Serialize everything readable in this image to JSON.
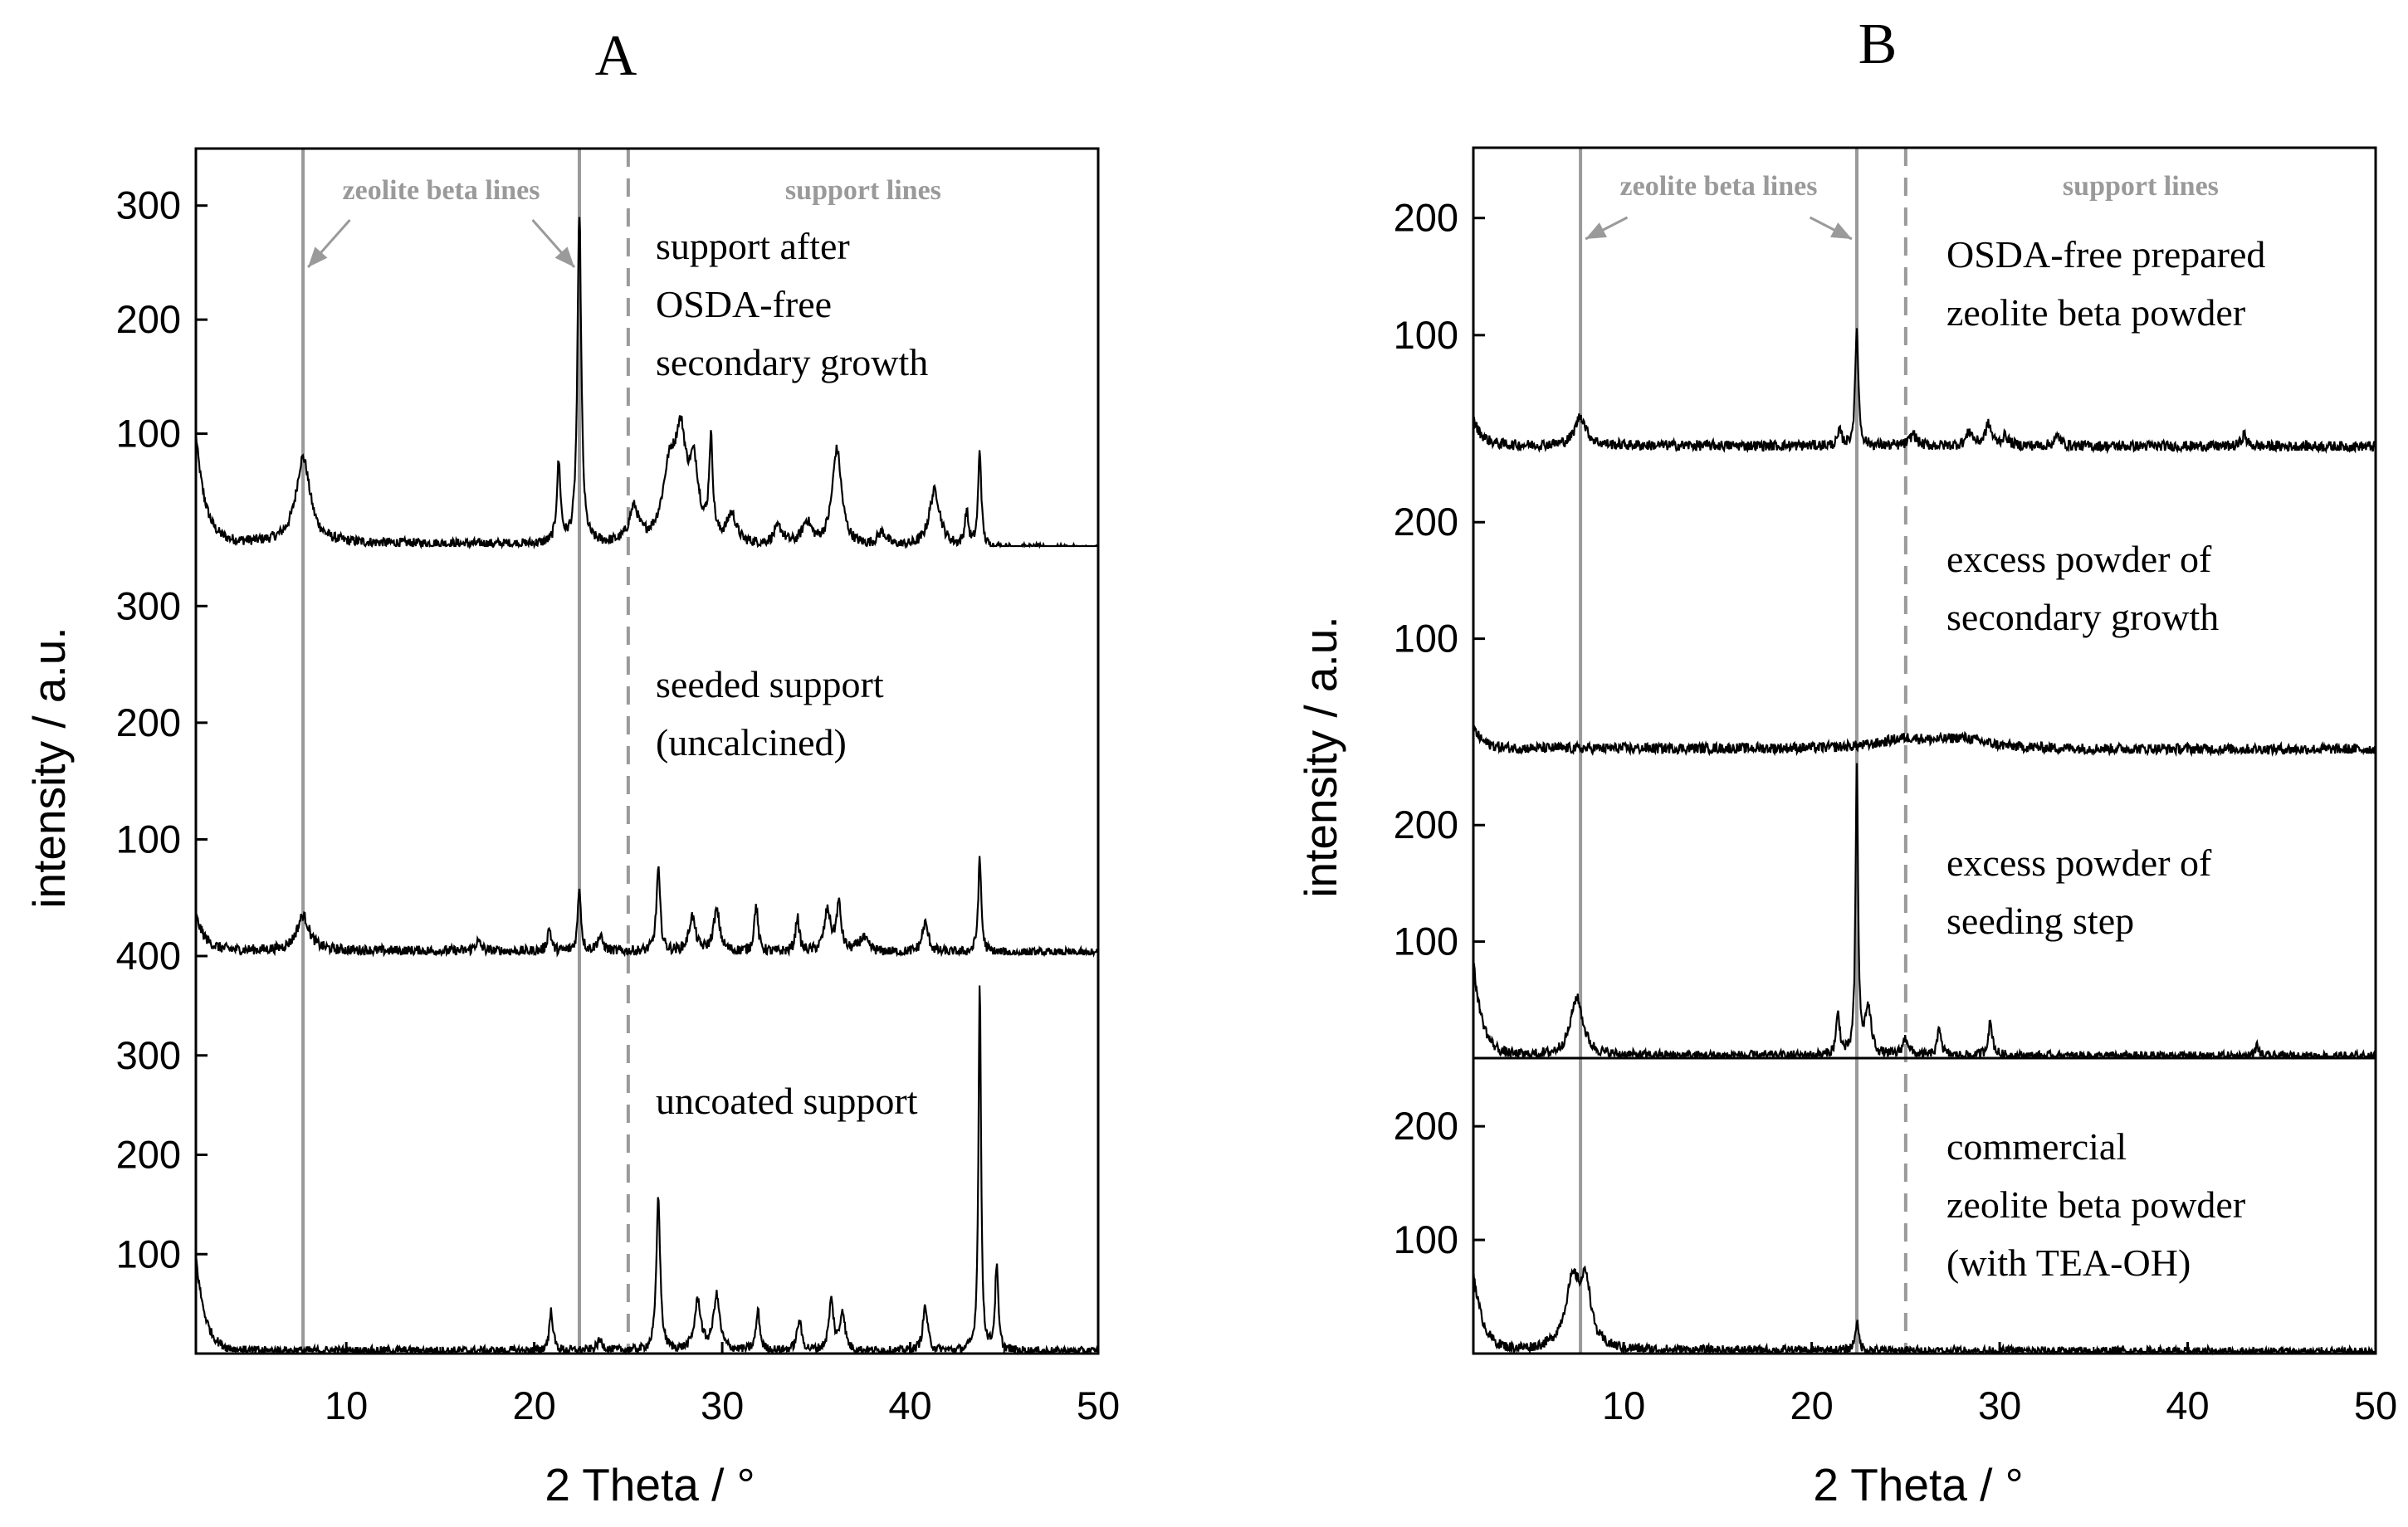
{
  "chart_data": [
    {
      "panel": "A",
      "title": "A",
      "type": "line",
      "xlabel": "2 Theta / °",
      "ylabel": "intensity / a.u.",
      "xlim": [
        2,
        50
      ],
      "xticks": [
        10,
        20,
        30,
        40,
        50
      ],
      "reference_lines": [
        {
          "x": 7.7,
          "style": "solid",
          "group": "zeolite beta lines"
        },
        {
          "x": 22.4,
          "style": "solid",
          "group": "zeolite beta lines"
        },
        {
          "x": 25.0,
          "style": "dashed",
          "group": "support lines"
        }
      ],
      "reference_labels": {
        "zeolite": "zeolite beta lines",
        "support": "support lines"
      },
      "series": [
        {
          "name": "support after OSDA-free secondary growth",
          "label_lines": [
            "support after",
            "OSDA-free",
            "secondary growth"
          ],
          "ylim": [
            0,
            350
          ],
          "yticks": [
            100,
            200,
            300
          ],
          "ytick_labels": [
            "100",
            "200",
            "300"
          ],
          "baseline": 5,
          "baseline_end": -2,
          "left_edge": 95,
          "peaks": [
            [
              7.7,
              75,
              0.45
            ],
            [
              21.3,
              70,
              0.12
            ],
            [
              22.4,
              290,
              0.12
            ],
            [
              25.3,
              30,
              0.3
            ],
            [
              27.2,
              60,
              0.45
            ],
            [
              27.8,
              80,
              0.35
            ],
            [
              28.5,
              60,
              0.3
            ],
            [
              29.4,
              85,
              0.12
            ],
            [
              30.5,
              25,
              0.3
            ],
            [
              33.0,
              15,
              0.3
            ],
            [
              34.5,
              20,
              0.3
            ],
            [
              36.1,
              85,
              0.3
            ],
            [
              38.5,
              12,
              0.3
            ],
            [
              41.3,
              50,
              0.35
            ],
            [
              43.0,
              30,
              0.12
            ],
            [
              43.7,
              85,
              0.1
            ]
          ]
        },
        {
          "name": "seeded support (uncalcined)",
          "label_lines": [
            "seeded support",
            "(uncalcined)"
          ],
          "ylim": [
            0,
            350
          ],
          "yticks": [
            100,
            200,
            300
          ],
          "ytick_labels": [
            "100",
            "200",
            "300"
          ],
          "baseline": 5,
          "baseline_end": 2,
          "left_edge": 30,
          "peaks": [
            [
              7.7,
              30,
              0.4
            ],
            [
              17.0,
              8,
              0.2
            ],
            [
              20.8,
              20,
              0.12
            ],
            [
              22.4,
              55,
              0.1
            ],
            [
              23.5,
              12,
              0.2
            ],
            [
              26.6,
              70,
              0.12
            ],
            [
              28.4,
              30,
              0.2
            ],
            [
              29.7,
              35,
              0.2
            ],
            [
              31.8,
              40,
              0.12
            ],
            [
              34.0,
              30,
              0.12
            ],
            [
              35.6,
              35,
              0.2
            ],
            [
              36.2,
              40,
              0.15
            ],
            [
              37.5,
              12,
              0.3
            ],
            [
              40.8,
              25,
              0.2
            ],
            [
              43.7,
              80,
              0.1
            ]
          ]
        },
        {
          "name": "uncoated support",
          "label_lines": [
            "uncoated support"
          ],
          "ylim": [
            0,
            400
          ],
          "yticks": [
            100,
            200,
            300,
            400
          ],
          "ytick_labels": [
            "100",
            "200",
            "300",
            "400"
          ],
          "baseline": 3,
          "baseline_end": 2,
          "left_edge": 95,
          "peaks": [
            [
              20.9,
              40,
              0.12
            ],
            [
              23.5,
              10,
              0.2
            ],
            [
              26.6,
              155,
              0.12
            ],
            [
              28.7,
              50,
              0.2
            ],
            [
              29.7,
              55,
              0.2
            ],
            [
              31.9,
              40,
              0.12
            ],
            [
              34.1,
              30,
              0.15
            ],
            [
              35.8,
              50,
              0.15
            ],
            [
              36.4,
              40,
              0.15
            ],
            [
              40.8,
              45,
              0.15
            ],
            [
              43.7,
              375,
              0.08
            ],
            [
              44.6,
              85,
              0.1
            ]
          ]
        }
      ]
    },
    {
      "panel": "B",
      "title": "B",
      "type": "line",
      "xlabel": "2 Theta / °",
      "ylabel": "intensity / a.u.",
      "xlim": [
        2,
        50
      ],
      "xticks": [
        10,
        20,
        30,
        40,
        50
      ],
      "reference_lines": [
        {
          "x": 7.7,
          "style": "solid",
          "group": "zeolite beta lines"
        },
        {
          "x": 22.4,
          "style": "solid",
          "group": "zeolite beta lines"
        },
        {
          "x": 25.0,
          "style": "dashed",
          "group": "support lines"
        }
      ],
      "reference_labels": {
        "zeolite": "zeolite beta lines",
        "support": "support lines"
      },
      "series": [
        {
          "name": "OSDA-free prepared zeolite beta powder",
          "label_lines": [
            "OSDA-free prepared",
            "zeolite beta powder"
          ],
          "ylim": [
            0,
            260
          ],
          "yticks": [
            100,
            200
          ],
          "ytick_labels": [
            "100",
            "200"
          ],
          "baseline": 6,
          "baseline_end": 5,
          "left_edge": 22,
          "peaks": [
            [
              7.7,
              25,
              0.35
            ],
            [
              21.5,
              12,
              0.12
            ],
            [
              22.4,
              100,
              0.1
            ],
            [
              25.4,
              10,
              0.2
            ],
            [
              28.4,
              12,
              0.2
            ],
            [
              29.4,
              18,
              0.2
            ],
            [
              30.3,
              8,
              0.2
            ],
            [
              33.1,
              8,
              0.2
            ],
            [
              43.0,
              10,
              0.15
            ]
          ]
        },
        {
          "name": "excess powder of secondary growth",
          "label_lines": [
            "excess powder of",
            "secondary growth"
          ],
          "ylim": [
            0,
            260
          ],
          "yticks": [
            100,
            200
          ],
          "ytick_labels": [
            "100",
            "200"
          ],
          "baseline": 6,
          "baseline_end": 5,
          "left_edge": 18,
          "peaks": [
            [
              25.0,
              8,
              1.5
            ],
            [
              28.0,
              8,
              1.5
            ]
          ]
        },
        {
          "name": "excess powder of seeding step",
          "label_lines": [
            "excess powder of",
            "seeding step"
          ],
          "ylim": [
            0,
            260
          ],
          "yticks": [
            100,
            200
          ],
          "ytick_labels": [
            "100",
            "200"
          ],
          "baseline": 2,
          "baseline_end": 1,
          "left_edge": 80,
          "peaks": [
            [
              7.5,
              50,
              0.4
            ],
            [
              21.4,
              35,
              0.12
            ],
            [
              22.4,
              245,
              0.08
            ],
            [
              23.0,
              40,
              0.2
            ],
            [
              25.0,
              15,
              0.2
            ],
            [
              26.8,
              25,
              0.12
            ],
            [
              29.5,
              28,
              0.15
            ],
            [
              43.7,
              10,
              0.1
            ]
          ]
        },
        {
          "name": "commercial zeolite beta powder (with TEA-OH)",
          "label_lines": [
            "commercial",
            "zeolite beta powder",
            "(with TEA-OH)"
          ],
          "ylim": [
            0,
            260
          ],
          "yticks": [
            100,
            200
          ],
          "ytick_labels": [
            "100",
            "200"
          ],
          "baseline": 3,
          "baseline_end": 1,
          "left_edge": 70,
          "peaks": [
            [
              7.3,
              60,
              0.5
            ],
            [
              8.0,
              50,
              0.3
            ],
            [
              22.4,
              25,
              0.12
            ]
          ]
        }
      ]
    }
  ]
}
